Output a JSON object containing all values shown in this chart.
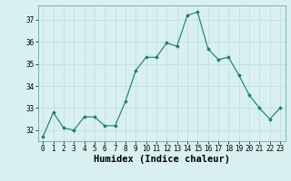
{
  "x": [
    0,
    1,
    2,
    3,
    4,
    5,
    6,
    7,
    8,
    9,
    10,
    11,
    12,
    13,
    14,
    15,
    16,
    17,
    18,
    19,
    20,
    21,
    22,
    23
  ],
  "y": [
    31.7,
    32.8,
    32.1,
    32.0,
    32.6,
    32.6,
    32.2,
    32.2,
    33.3,
    34.7,
    35.3,
    35.3,
    35.95,
    35.8,
    37.2,
    37.35,
    35.7,
    35.2,
    35.3,
    34.5,
    33.6,
    33.0,
    32.5,
    33.0
  ],
  "xlabel": "Humidex (Indice chaleur)",
  "ylim": [
    31.5,
    37.65
  ],
  "yticks": [
    32,
    33,
    34,
    35,
    36,
    37
  ],
  "xticks": [
    0,
    1,
    2,
    3,
    4,
    5,
    6,
    7,
    8,
    9,
    10,
    11,
    12,
    13,
    14,
    15,
    16,
    17,
    18,
    19,
    20,
    21,
    22,
    23
  ],
  "line_color": "#1a7a6e",
  "marker": "D",
  "marker_size": 1.8,
  "bg_color": "#d8f0f0",
  "grid_color": "#c0dada",
  "tick_label_fontsize": 5.5,
  "xlabel_fontsize": 7.5
}
